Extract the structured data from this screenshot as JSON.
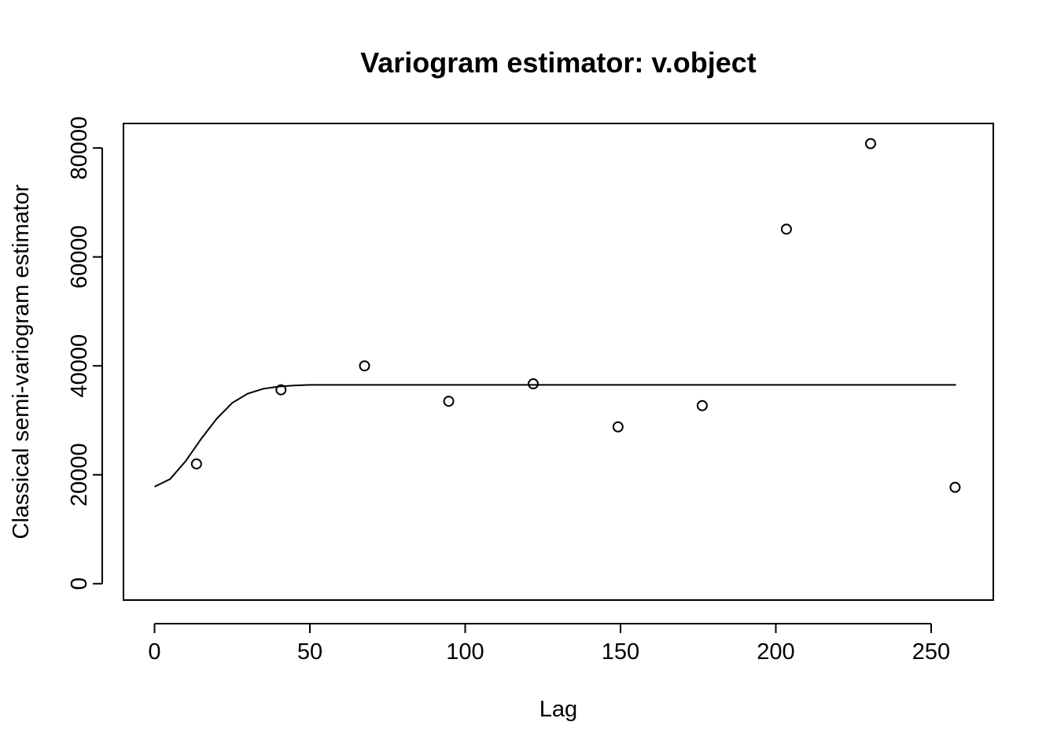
{
  "chart_data": {
    "type": "scatter",
    "title": "Variogram estimator: v.object",
    "xlabel": "Lag",
    "ylabel": "Classical semi-variogram estimator",
    "xlim": [
      -10,
      270
    ],
    "ylim": [
      -3000,
      84500
    ],
    "x_ticks": [
      0,
      50,
      100,
      150,
      200,
      250
    ],
    "x_tick_labels": [
      "0",
      "50",
      "100",
      "150",
      "200",
      "250"
    ],
    "y_ticks": [
      0,
      20000,
      40000,
      60000,
      80000
    ],
    "y_tick_labels": [
      "0",
      "20000",
      "40000",
      "60000",
      "80000"
    ],
    "grid": false,
    "legend": "none",
    "series": [
      {
        "type": "scatter",
        "marker": "open-circle",
        "x": [
          13.5,
          40.7,
          67.6,
          94.7,
          121.9,
          149.2,
          176.3,
          203.4,
          230.5,
          257.7
        ],
        "y": [
          22000,
          35600,
          40000,
          33500,
          36700,
          28800,
          32700,
          65100,
          80800,
          17700
        ]
      },
      {
        "type": "line",
        "x": [
          0,
          5,
          10,
          15,
          20,
          25,
          30,
          35,
          40,
          45,
          50,
          60,
          80,
          100,
          150,
          200,
          258
        ],
        "y": [
          17800,
          19200,
          22500,
          26600,
          30300,
          33200,
          34900,
          35800,
          36200,
          36400,
          36500,
          36500,
          36500,
          36500,
          36500,
          36500,
          36500
        ]
      }
    ]
  }
}
